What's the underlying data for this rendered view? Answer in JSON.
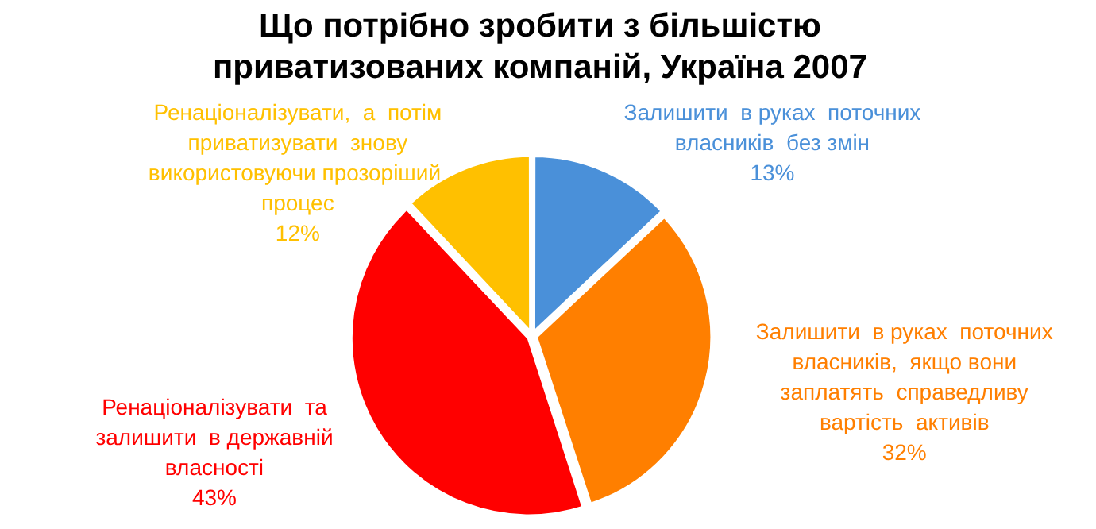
{
  "chart_data": {
    "type": "pie",
    "title": "Що потрібно зробити з більшістю приватизованих компаній, Україна 2007",
    "categories": [
      "Залишити  в руках  поточних власників  без змін",
      "Залишити  в руках  поточних власників,  якщо вони заплатять  справедливу вартість  активів",
      "Ренаціоналізувати  та залишити  в державній власності",
      "Ренаціоналізувати,  а  потім приватизувати  знову використовуючи прозоріший  процес"
    ],
    "values": [
      13,
      32,
      43,
      12
    ],
    "colors": [
      "#4a90d9",
      "#ff7f00",
      "#ff0000",
      "#ffc000"
    ],
    "value_labels": [
      "13%",
      "32%",
      "43%",
      "12%"
    ],
    "legend": false
  }
}
